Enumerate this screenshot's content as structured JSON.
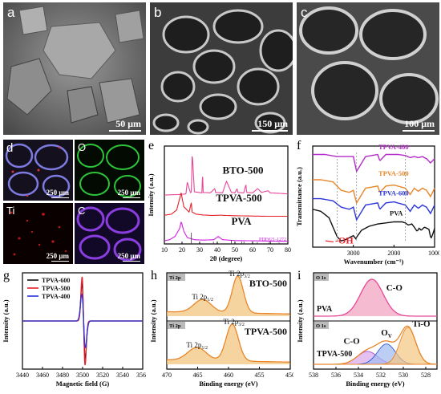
{
  "panels": {
    "a": {
      "label": "a",
      "scale": "50 μm"
    },
    "b": {
      "label": "b",
      "scale": "150 μm"
    },
    "c": {
      "label": "c",
      "scale": "100 μm"
    },
    "d": {
      "label": "d",
      "tiles": [
        {
          "element": "",
          "scale": "250 μm"
        },
        {
          "element": "O",
          "scale": "250 μm"
        },
        {
          "element": "Ti",
          "scale": "250 μm"
        },
        {
          "element": "C",
          "scale": "250 μm"
        }
      ]
    },
    "e": {
      "label": "e"
    },
    "f": {
      "label": "f",
      "annotation": "-OH"
    },
    "g": {
      "label": "g"
    },
    "h": {
      "label": "h",
      "tags": [
        "Ti 2p",
        "Ti 2p"
      ]
    },
    "i": {
      "label": "i",
      "tags": [
        "O 1s",
        "O 1s"
      ]
    }
  },
  "colors": {
    "pink": "#e8479a",
    "red": "#e5202a",
    "magenta": "#d01fe0",
    "orange": "#e8862a",
    "blue": "#2a34d8",
    "black": "#111111",
    "xps_fill": "#f3c680",
    "pva_fill": "#f2aac4"
  },
  "chart_data": [
    {
      "panel": "e",
      "type": "line",
      "xlabel": "2θ (degree)",
      "ylabel": "Intensity (a.u.)",
      "xlim": [
        10,
        80
      ],
      "xticks": [
        10,
        20,
        30,
        40,
        50,
        60,
        70,
        80
      ],
      "series": [
        {
          "name": "BTO-500",
          "color": "#e8479a",
          "offset": 2.0,
          "x": [
            10,
            18,
            22.2,
            23,
            24.8,
            25.3,
            25.8,
            27,
            31.4,
            31.6,
            32,
            36,
            38.6,
            39,
            43,
            45.2,
            48,
            50,
            51.2,
            51.6,
            55,
            56.2,
            56.6,
            60,
            62.9,
            65,
            68.8,
            70,
            75,
            79.9
          ],
          "y": [
            0.3,
            0.32,
            0.35,
            0.9,
            0.4,
            0.45,
            2.3,
            0.45,
            0.4,
            1.6,
            0.42,
            0.4,
            0.6,
            0.42,
            0.4,
            0.95,
            0.42,
            0.4,
            0.6,
            0.42,
            0.4,
            0.8,
            0.42,
            0.4,
            0.6,
            0.42,
            0.5,
            0.4,
            0.38,
            0.35
          ]
        },
        {
          "name": "TPVA-500",
          "color": "#e5202a",
          "offset": 1.0,
          "x": [
            10,
            14,
            17,
            19.5,
            21,
            24,
            25.3,
            25.7,
            28,
            32,
            37,
            42,
            48,
            54,
            60,
            70,
            79.9
          ],
          "y": [
            0.35,
            0.4,
            0.6,
            1.4,
            0.75,
            0.5,
            0.95,
            0.5,
            0.4,
            0.36,
            0.34,
            0.35,
            0.33,
            0.32,
            0.31,
            0.3,
            0.3
          ]
        },
        {
          "name": "PVA",
          "color": "#d01fe0",
          "offset": 0.0,
          "x": [
            10,
            13,
            16,
            18.5,
            19.6,
            21,
            23,
            27,
            32,
            38,
            40.5,
            43,
            50,
            58,
            66,
            74,
            79.9
          ],
          "y": [
            0.15,
            0.2,
            0.35,
            0.7,
            1.05,
            0.6,
            0.3,
            0.2,
            0.18,
            0.2,
            0.35,
            0.2,
            0.16,
            0.15,
            0.14,
            0.13,
            0.13
          ]
        }
      ],
      "reference": {
        "name": "PDF#21-1272",
        "x": [
          25.3,
          37.8,
          48.0,
          53.9,
          55.1,
          62.7,
          68.8,
          70.3,
          75.0
        ],
        "h": [
          1.0,
          0.2,
          0.35,
          0.2,
          0.2,
          0.15,
          0.1,
          0.1,
          0.12
        ]
      }
    },
    {
      "panel": "f",
      "type": "line",
      "xlabel": "Wavenumber (cm⁻¹)",
      "ylabel": "Transmittance (a.u.)",
      "xlim": [
        4000,
        1000
      ],
      "xticks": [
        3000,
        2000,
        1000
      ],
      "series": [
        {
          "name": "TPVA-400",
          "color": "#b429c9",
          "x": [
            4000,
            3700,
            3400,
            3000,
            2920,
            2700,
            2400,
            2349,
            2200,
            1900,
            1720,
            1600,
            1500,
            1400,
            1300,
            1200,
            1100,
            1050,
            1000
          ],
          "y": [
            4.2,
            4.2,
            4.1,
            4.1,
            3.4,
            4.1,
            4.2,
            3.9,
            4.2,
            4.2,
            4.15,
            4.05,
            4.1,
            4.05,
            4.1,
            4.0,
            3.8,
            3.9,
            4.0
          ]
        },
        {
          "name": "TPVA-500",
          "color": "#e8862a",
          "x": [
            4000,
            3800,
            3500,
            3300,
            3100,
            3000,
            2920,
            2700,
            2400,
            2349,
            2200,
            2000,
            1720,
            1600,
            1500,
            1400,
            1300,
            1200,
            1100,
            1050,
            1000
          ],
          "y": [
            3.0,
            3.0,
            2.9,
            2.5,
            2.4,
            2.5,
            1.9,
            2.6,
            2.7,
            2.4,
            2.7,
            2.75,
            2.6,
            2.3,
            2.6,
            2.45,
            2.6,
            2.5,
            2.2,
            2.4,
            2.6
          ]
        },
        {
          "name": "TPVA-600",
          "color": "#2a34d8",
          "x": [
            4000,
            3800,
            3500,
            3300,
            3100,
            3000,
            2920,
            2700,
            2400,
            2349,
            2200,
            2000,
            1720,
            1600,
            1500,
            1400,
            1300,
            1200,
            1100,
            1050,
            1000
          ],
          "y": [
            2.1,
            2.1,
            2.0,
            1.7,
            1.6,
            1.7,
            1.1,
            1.8,
            1.9,
            1.6,
            1.9,
            1.95,
            1.8,
            1.5,
            1.8,
            1.65,
            1.8,
            1.7,
            1.4,
            1.6,
            1.8
          ]
        },
        {
          "name": "PVA",
          "color": "#111111",
          "x": [
            4000,
            3800,
            3600,
            3400,
            3300,
            3200,
            3000,
            2940,
            2910,
            2800,
            2600,
            2400,
            2200,
            2000,
            1800,
            1720,
            1650,
            1560,
            1500,
            1430,
            1380,
            1330,
            1250,
            1140,
            1090,
            1030,
            1000
          ],
          "y": [
            1.6,
            1.5,
            1.2,
            0.3,
            0.1,
            0.15,
            0.35,
            0.2,
            0.3,
            0.6,
            0.8,
            0.9,
            0.95,
            1.0,
            1.0,
            0.95,
            0.85,
            0.9,
            0.75,
            0.55,
            0.7,
            0.6,
            0.75,
            0.65,
            0.2,
            0.5,
            0.7
          ]
        }
      ]
    },
    {
      "panel": "g",
      "type": "line",
      "xlabel": "Magnetic field (G)",
      "ylabel": "Intensity (a.u.)",
      "xlim": [
        3440,
        3560
      ],
      "xticks": [
        3440,
        3460,
        3480,
        3500,
        3520,
        3540,
        3560
      ],
      "series": [
        {
          "name": "TPVA-600",
          "color": "#111111",
          "center": 3501,
          "amp": 0.85,
          "width": 1.6
        },
        {
          "name": "TPVA-500",
          "color": "#e5202a",
          "center": 3501,
          "amp": 1.0,
          "width": 1.5
        },
        {
          "name": "TPVA-400",
          "color": "#2a34d8",
          "center": 3501,
          "amp": 0.6,
          "width": 1.8
        }
      ]
    },
    {
      "panel": "h",
      "type": "area",
      "xlabel": "Binding energy (eV)",
      "ylabel": "Intensity (a.u.)",
      "xlim": [
        470,
        450
      ],
      "xticks": [
        470,
        465,
        460,
        455,
        450
      ],
      "series": [
        {
          "name": "BTO-500",
          "color": "#e8862a",
          "peaks": [
            [
              458.5,
              1.0,
              0.9
            ],
            [
              464.2,
              0.35,
              1.4
            ]
          ]
        },
        {
          "name": "TPVA-500",
          "color": "#e8862a",
          "peaks": [
            [
              459.4,
              1.0,
              1.0
            ],
            [
              465.1,
              0.35,
              1.5
            ]
          ]
        }
      ],
      "annotations": [
        "Ti 2p3/2",
        "Ti 2p1/2"
      ]
    },
    {
      "panel": "i",
      "type": "area",
      "xlabel": "Binding energy (eV)",
      "ylabel": "Intensity (a.u.)",
      "xlim": [
        538,
        527
      ],
      "xticks": [
        538,
        536,
        534,
        532,
        530,
        528
      ],
      "series": [
        {
          "name": "PVA",
          "color": "#e8479a",
          "peaks": [
            [
              532.8,
              1.0,
              1.0
            ]
          ],
          "labels": [
            "C-O"
          ]
        },
        {
          "name": "TPVA-500",
          "color": "#e8862a",
          "components": [
            {
              "name": "C-O",
              "color": "#b050c8",
              "peak": [
                533.2,
                0.35,
                0.9
              ]
            },
            {
              "name": "Ov",
              "color": "#2a5ad8",
              "peak": [
                531.5,
                0.55,
                0.8
              ]
            },
            {
              "name": "Ti-O",
              "color": "#e8862a",
              "peak": [
                529.6,
                1.0,
                0.7
              ]
            }
          ]
        }
      ]
    }
  ]
}
